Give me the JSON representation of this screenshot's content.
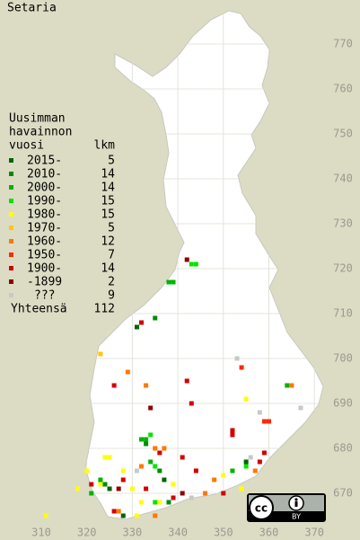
{
  "title": "Setaria",
  "legend": {
    "heading": [
      "Uusimman",
      "havainnon",
      "vuosi"
    ],
    "count_heading": "lkm",
    "rows": [
      {
        "label": "2015-",
        "count": 5,
        "color": "#006400"
      },
      {
        "label": "2010-",
        "count": 14,
        "color": "#008c00"
      },
      {
        "label": "2000-",
        "count": 14,
        "color": "#00b400"
      },
      {
        "label": "1990-",
        "count": 15,
        "color": "#00e600"
      },
      {
        "label": "1980-",
        "count": 15,
        "color": "#ffff00"
      },
      {
        "label": "1970-",
        "count": 5,
        "color": "#ffc800"
      },
      {
        "label": "1960-",
        "count": 12,
        "color": "#ff7800"
      },
      {
        "label": "1950-",
        "count": 7,
        "color": "#ff2800"
      },
      {
        "label": "1900-",
        "count": 14,
        "color": "#d20000"
      },
      {
        "label": "-1899",
        "count": 2,
        "color": "#8c0000"
      },
      {
        "label": "???",
        "count": 9,
        "color": "#c8c8c8"
      }
    ],
    "total_label": "Yhteensä",
    "total": 112
  },
  "grid": {
    "eticks": [
      310,
      320,
      330,
      340,
      350,
      360,
      370
    ],
    "nticks": [
      670,
      680,
      690,
      700,
      710,
      720,
      730,
      740,
      750,
      760,
      770
    ]
  },
  "points": [
    [
      342,
      722,
      9
    ],
    [
      343,
      721,
      3
    ],
    [
      344,
      721,
      3
    ],
    [
      338,
      717,
      2
    ],
    [
      339,
      717,
      2
    ],
    [
      332,
      708,
      8
    ],
    [
      331,
      707,
      0
    ],
    [
      335,
      709,
      1
    ],
    [
      323,
      701,
      5
    ],
    [
      329,
      697,
      6
    ],
    [
      326,
      694,
      8
    ],
    [
      333,
      694,
      6
    ],
    [
      342,
      695,
      8
    ],
    [
      353,
      700,
      10
    ],
    [
      354,
      698,
      7
    ],
    [
      364,
      694,
      2
    ],
    [
      365,
      694,
      6
    ],
    [
      343,
      690,
      8
    ],
    [
      334,
      689,
      9
    ],
    [
      355,
      691,
      4
    ],
    [
      358,
      688,
      10
    ],
    [
      359,
      686,
      7
    ],
    [
      360,
      686,
      7
    ],
    [
      367,
      689,
      10
    ],
    [
      352,
      684,
      8
    ],
    [
      352,
      683,
      8
    ],
    [
      332,
      682,
      2
    ],
    [
      333,
      682,
      2
    ],
    [
      334,
      683,
      3
    ],
    [
      333,
      681,
      1
    ],
    [
      335,
      680,
      6
    ],
    [
      336,
      679,
      8
    ],
    [
      337,
      680,
      6
    ],
    [
      334,
      677,
      2
    ],
    [
      335,
      676,
      3
    ],
    [
      336,
      675,
      1
    ],
    [
      337,
      673,
      0
    ],
    [
      341,
      678,
      8
    ],
    [
      339,
      672,
      4
    ],
    [
      324,
      678,
      4
    ],
    [
      325,
      678,
      4
    ],
    [
      320,
      675,
      4
    ],
    [
      328,
      675,
      4
    ],
    [
      331,
      675,
      10
    ],
    [
      332,
      676,
      6
    ],
    [
      328,
      673,
      8
    ],
    [
      321,
      672,
      8
    ],
    [
      323,
      672,
      4
    ],
    [
      324,
      672,
      1
    ],
    [
      323,
      673,
      2
    ],
    [
      325,
      671,
      0
    ],
    [
      327,
      671,
      9
    ],
    [
      330,
      671,
      4
    ],
    [
      333,
      671,
      8
    ],
    [
      335,
      668,
      3
    ],
    [
      336,
      668,
      4
    ],
    [
      338,
      668,
      1
    ],
    [
      339,
      669,
      8
    ],
    [
      341,
      670,
      9
    ],
    [
      343,
      669,
      10
    ],
    [
      332,
      668,
      4
    ],
    [
      326,
      666,
      8
    ],
    [
      327,
      666,
      6
    ],
    [
      328,
      665,
      0
    ],
    [
      331,
      665,
      4
    ],
    [
      335,
      665,
      6
    ],
    [
      346,
      670,
      6
    ],
    [
      350,
      670,
      8
    ],
    [
      354,
      671,
      4
    ],
    [
      344,
      675,
      8
    ],
    [
      348,
      673,
      6
    ],
    [
      350,
      674,
      4
    ],
    [
      352,
      675,
      2
    ],
    [
      355,
      677,
      0
    ],
    [
      356,
      678,
      10
    ],
    [
      357,
      675,
      6
    ],
    [
      358,
      677,
      8
    ],
    [
      359,
      679,
      8
    ],
    [
      355,
      676,
      3
    ],
    [
      311,
      665,
      4
    ],
    [
      318,
      671,
      4
    ],
    [
      321,
      670,
      2
    ]
  ],
  "license": "BY"
}
